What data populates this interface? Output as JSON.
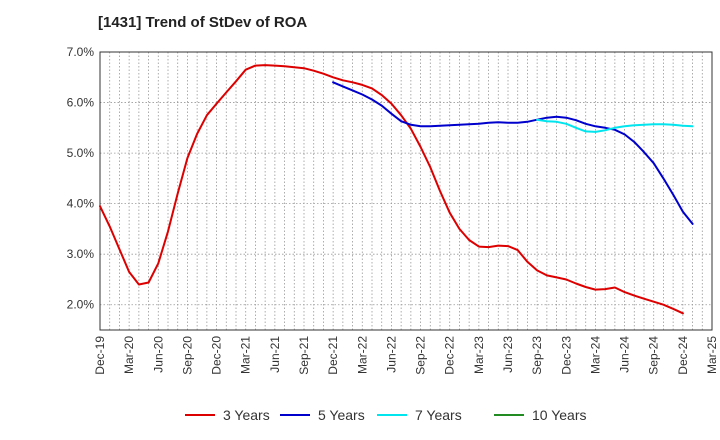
{
  "title": "[1431]  Trend of StDev of ROA",
  "chart_data": {
    "type": "line",
    "title": "[1431]  Trend of StDev of ROA",
    "xlabel": "",
    "ylabel": "",
    "x_ticks": [
      "Dec-19",
      "Mar-20",
      "Jun-20",
      "Sep-20",
      "Dec-20",
      "Mar-21",
      "Jun-21",
      "Sep-21",
      "Dec-21",
      "Mar-22",
      "Jun-22",
      "Sep-22",
      "Dec-22",
      "Mar-23",
      "Jun-23",
      "Sep-23",
      "Dec-23",
      "Mar-24",
      "Jun-24",
      "Sep-24",
      "Dec-24",
      "Mar-25"
    ],
    "y_ticks": [
      "2.0%",
      "3.0%",
      "4.0%",
      "5.0%",
      "6.0%",
      "7.0%"
    ],
    "ylim": [
      1.5,
      7.0
    ],
    "y_unit": "%",
    "grid": true,
    "legend_position": "bottom",
    "series": [
      {
        "name": "3 Years",
        "color": "#dd0000",
        "points": [
          [
            "Dec-19",
            3.95
          ],
          [
            "Jan-20",
            3.55
          ],
          [
            "Feb-20",
            3.1
          ],
          [
            "Mar-20",
            2.65
          ],
          [
            "Apr-20",
            2.4
          ],
          [
            "May-20",
            2.44
          ],
          [
            "Jun-20",
            2.82
          ],
          [
            "Jul-20",
            3.45
          ],
          [
            "Aug-20",
            4.2
          ],
          [
            "Sep-20",
            4.9
          ],
          [
            "Oct-20",
            5.38
          ],
          [
            "Nov-20",
            5.75
          ],
          [
            "Dec-20",
            5.98
          ],
          [
            "Jan-21",
            6.2
          ],
          [
            "Feb-21",
            6.42
          ],
          [
            "Mar-21",
            6.65
          ],
          [
            "Apr-21",
            6.73
          ],
          [
            "May-21",
            6.74
          ],
          [
            "Jun-21",
            6.73
          ],
          [
            "Jul-21",
            6.72
          ],
          [
            "Aug-21",
            6.7
          ],
          [
            "Sep-21",
            6.68
          ],
          [
            "Oct-21",
            6.63
          ],
          [
            "Nov-21",
            6.57
          ],
          [
            "Dec-21",
            6.5
          ],
          [
            "Jan-22",
            6.44
          ],
          [
            "Feb-22",
            6.4
          ],
          [
            "Mar-22",
            6.35
          ],
          [
            "Apr-22",
            6.28
          ],
          [
            "May-22",
            6.15
          ],
          [
            "Jun-22",
            5.98
          ],
          [
            "Jul-22",
            5.75
          ],
          [
            "Aug-22",
            5.48
          ],
          [
            "Sep-22",
            5.12
          ],
          [
            "Oct-22",
            4.72
          ],
          [
            "Nov-22",
            4.25
          ],
          [
            "Dec-22",
            3.82
          ],
          [
            "Jan-23",
            3.5
          ],
          [
            "Feb-23",
            3.28
          ],
          [
            "Mar-23",
            3.15
          ],
          [
            "Apr-23",
            3.14
          ],
          [
            "May-23",
            3.17
          ],
          [
            "Jun-23",
            3.16
          ],
          [
            "Jul-23",
            3.08
          ],
          [
            "Aug-23",
            2.85
          ],
          [
            "Sep-23",
            2.68
          ],
          [
            "Oct-23",
            2.58
          ],
          [
            "Nov-23",
            2.54
          ],
          [
            "Dec-23",
            2.5
          ],
          [
            "Jan-24",
            2.42
          ],
          [
            "Feb-24",
            2.35
          ],
          [
            "Mar-24",
            2.3
          ],
          [
            "Apr-24",
            2.31
          ],
          [
            "May-24",
            2.34
          ],
          [
            "Jun-24",
            2.25
          ],
          [
            "Jul-24",
            2.18
          ],
          [
            "Aug-24",
            2.12
          ],
          [
            "Sep-24",
            2.06
          ],
          [
            "Oct-24",
            2.0
          ],
          [
            "Nov-24",
            1.92
          ],
          [
            "Dec-24",
            1.83
          ]
        ]
      },
      {
        "name": "5 Years",
        "color": "#0000cc",
        "points": [
          [
            "Dec-21",
            6.4
          ],
          [
            "Jan-22",
            6.32
          ],
          [
            "Feb-22",
            6.24
          ],
          [
            "Mar-22",
            6.16
          ],
          [
            "Apr-22",
            6.06
          ],
          [
            "May-22",
            5.94
          ],
          [
            "Jun-22",
            5.78
          ],
          [
            "Jul-22",
            5.63
          ],
          [
            "Aug-22",
            5.56
          ],
          [
            "Sep-22",
            5.53
          ],
          [
            "Oct-22",
            5.53
          ],
          [
            "Nov-22",
            5.54
          ],
          [
            "Dec-22",
            5.55
          ],
          [
            "Jan-23",
            5.56
          ],
          [
            "Feb-23",
            5.57
          ],
          [
            "Mar-23",
            5.58
          ],
          [
            "Apr-23",
            5.6
          ],
          [
            "May-23",
            5.61
          ],
          [
            "Jun-23",
            5.6
          ],
          [
            "Jul-23",
            5.6
          ],
          [
            "Aug-23",
            5.62
          ],
          [
            "Sep-23",
            5.66
          ],
          [
            "Oct-23",
            5.7
          ],
          [
            "Nov-23",
            5.72
          ],
          [
            "Dec-23",
            5.7
          ],
          [
            "Jan-24",
            5.65
          ],
          [
            "Feb-24",
            5.58
          ],
          [
            "Mar-24",
            5.53
          ],
          [
            "Apr-24",
            5.5
          ],
          [
            "May-24",
            5.46
          ],
          [
            "Jun-24",
            5.37
          ],
          [
            "Jul-24",
            5.22
          ],
          [
            "Aug-24",
            5.02
          ],
          [
            "Sep-24",
            4.8
          ],
          [
            "Oct-24",
            4.5
          ],
          [
            "Nov-24",
            4.18
          ],
          [
            "Dec-24",
            3.84
          ],
          [
            "Jan-25",
            3.6
          ]
        ]
      },
      {
        "name": "7 Years",
        "color": "#00e5ee",
        "points": [
          [
            "Sep-23",
            5.66
          ],
          [
            "Oct-23",
            5.63
          ],
          [
            "Nov-23",
            5.62
          ],
          [
            "Dec-23",
            5.58
          ],
          [
            "Jan-24",
            5.5
          ],
          [
            "Feb-24",
            5.43
          ],
          [
            "Mar-24",
            5.42
          ],
          [
            "Apr-24",
            5.45
          ],
          [
            "May-24",
            5.5
          ],
          [
            "Jun-24",
            5.53
          ],
          [
            "Jul-24",
            5.55
          ],
          [
            "Aug-24",
            5.56
          ],
          [
            "Sep-24",
            5.57
          ],
          [
            "Oct-24",
            5.57
          ],
          [
            "Nov-24",
            5.56
          ],
          [
            "Dec-24",
            5.54
          ],
          [
            "Jan-25",
            5.53
          ]
        ]
      },
      {
        "name": "10 Years",
        "color": "#228b22",
        "points": []
      }
    ]
  }
}
